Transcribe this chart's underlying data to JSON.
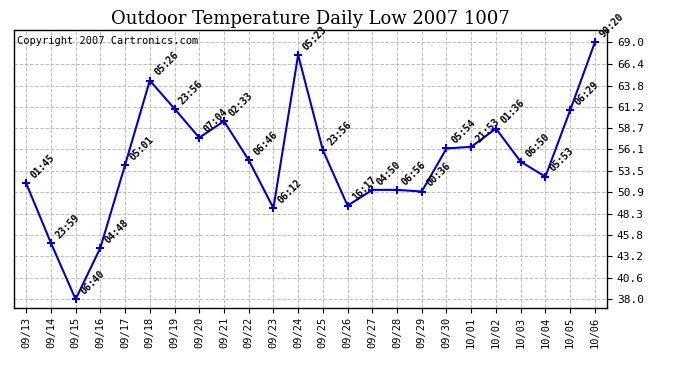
{
  "title": "Outdoor Temperature Daily Low 2007 1007",
  "copyright": "Copyright 2007 Cartronics.com",
  "x_labels": [
    "09/13",
    "09/14",
    "09/15",
    "09/16",
    "09/17",
    "09/18",
    "09/19",
    "09/20",
    "09/21",
    "09/22",
    "09/23",
    "09/24",
    "09/25",
    "09/26",
    "09/27",
    "09/28",
    "09/29",
    "09/30",
    "10/01",
    "10/02",
    "10/03",
    "10/04",
    "10/05",
    "10/06"
  ],
  "y_values": [
    52.0,
    44.8,
    38.0,
    44.2,
    54.2,
    64.4,
    61.0,
    57.5,
    59.5,
    54.8,
    49.0,
    67.5,
    56.0,
    49.3,
    51.2,
    51.2,
    51.0,
    56.2,
    56.4,
    58.6,
    54.6,
    52.8,
    60.8,
    69.0
  ],
  "point_labels": [
    "01:45",
    "23:59",
    "06:40",
    "04:48",
    "05:01",
    "05:26",
    "23:56",
    "07:04",
    "02:33",
    "06:46",
    "06:12",
    "05:23",
    "23:56",
    "16:17",
    "04:50",
    "06:56",
    "00:36",
    "05:54",
    "21:53",
    "01:36",
    "06:50",
    "05:53",
    "06:29",
    "90:20"
  ],
  "y_ticks": [
    38.0,
    40.6,
    43.2,
    45.8,
    48.3,
    50.9,
    53.5,
    56.1,
    58.7,
    61.2,
    63.8,
    66.4,
    69.0
  ],
  "ylim": [
    37.0,
    70.5
  ],
  "line_color": "#0000cc",
  "marker_color": "#0000cc",
  "grid_color": "#bbbbbb",
  "bg_color": "#ffffff",
  "title_fontsize": 13,
  "label_fontsize": 7,
  "copyright_fontsize": 7.5
}
